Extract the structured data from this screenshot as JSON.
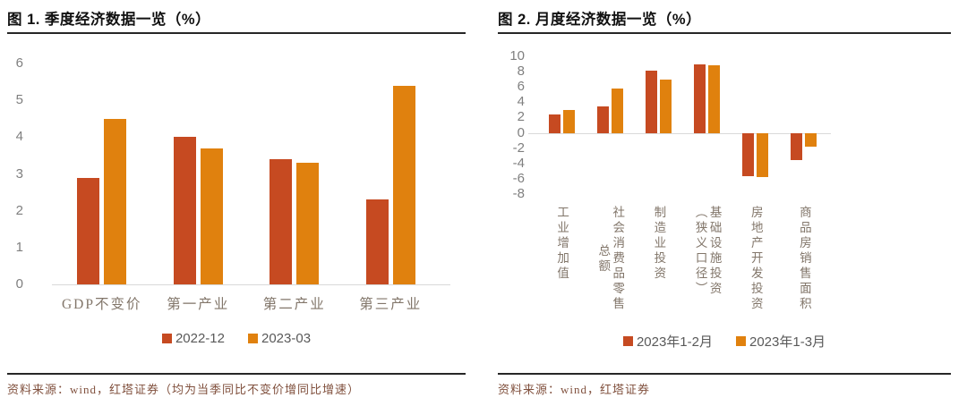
{
  "figures": [
    {
      "title": "图 1. 季度经济数据一览（%）",
      "source": "资料来源：wind，红塔证券（均为当季同比不变价增同比增速）",
      "legend": [
        "2022-12",
        "2023-03"
      ]
    },
    {
      "title": "图 2. 月度经济数据一览（%）",
      "source": "资料来源：wind，红塔证券",
      "legend": [
        "2023年1-2月",
        "2023年1-3月"
      ]
    }
  ],
  "colors": {
    "series1": "#C64A21",
    "series2": "#E0810E",
    "tick_text": "#7f7f7f",
    "category_text": "#82766a",
    "legend_text": "#595959",
    "axis_line": "#d9d9d9",
    "rule": "#262626",
    "source_text": "#80503d",
    "title_text": "#111111"
  },
  "chart_data": [
    {
      "type": "bar",
      "title": "图 1. 季度经济数据一览（%）",
      "categories": [
        "GDP不变价",
        "第一产业",
        "第二产业",
        "第三产业"
      ],
      "series": [
        {
          "name": "2022-12",
          "color": "#C64A21",
          "values": [
            2.9,
            4.0,
            3.4,
            2.3
          ]
        },
        {
          "name": "2023-03",
          "color": "#E0810E",
          "values": [
            4.5,
            3.7,
            3.3,
            5.4
          ]
        }
      ],
      "xlabel": "",
      "ylabel": "",
      "ylim": [
        0,
        6
      ],
      "yticks": [
        6,
        5,
        4,
        3,
        2,
        1,
        0
      ],
      "grid": false,
      "legend_position": "bottom",
      "category_label_orientation": "horizontal"
    },
    {
      "type": "bar",
      "title": "图 2. 月度经济数据一览（%）",
      "categories": [
        "工业增加值",
        "社会消费品零售总额",
        "制造业投资",
        "基础设施投资（狭义口径）",
        "房地产开发投资",
        "商品房销售面积"
      ],
      "category_label_lines": [
        [
          "工业增加值"
        ],
        [
          "社会消费品零售",
          "总额"
        ],
        [
          "制造业投资"
        ],
        [
          "基础设施投资",
          "（狭义口径）"
        ],
        [
          "房地产开发投资"
        ],
        [
          "商品房销售面积"
        ]
      ],
      "series": [
        {
          "name": "2023年1-2月",
          "color": "#C64A21",
          "values": [
            2.4,
            3.5,
            8.1,
            9.0,
            -5.7,
            -3.6
          ]
        },
        {
          "name": "2023年1-3月",
          "color": "#E0810E",
          "values": [
            3.0,
            5.8,
            7.0,
            8.8,
            -5.8,
            -1.8
          ]
        }
      ],
      "xlabel": "",
      "ylabel": "",
      "ylim": [
        -8,
        10
      ],
      "yticks": [
        10,
        8,
        6,
        4,
        2,
        0,
        -2,
        -4,
        -6,
        -8
      ],
      "grid": false,
      "legend_position": "bottom",
      "category_label_orientation": "vertical"
    }
  ]
}
